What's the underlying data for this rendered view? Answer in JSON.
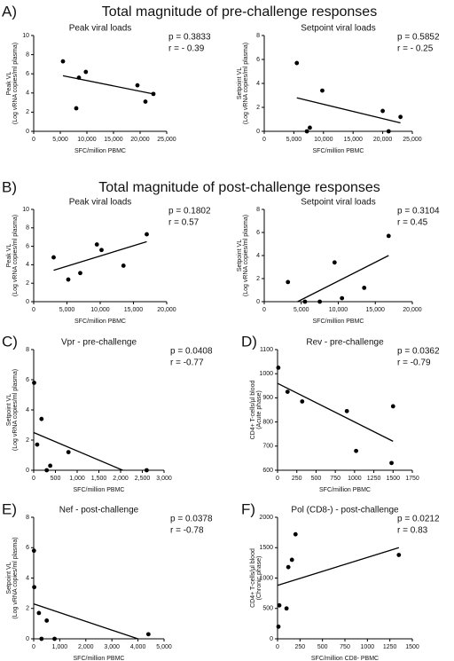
{
  "sections": [
    {
      "letter": "A)",
      "title": "Total magnitude of pre-challenge responses"
    },
    {
      "letter": "B)",
      "title": "Total magnitude of post-challenge responses"
    }
  ],
  "chart_data": [
    {
      "type": "scatter",
      "title": "Peak viral loads",
      "xlabel": "SFC/million PBMC",
      "ylabel": [
        "Peak VL",
        "(Log vRNA copies/ml plasma)"
      ],
      "annotations": [
        "p = 0.3833",
        "r = - 0.39"
      ],
      "x": [
        5500,
        8000,
        8500,
        9800,
        19500,
        21000,
        22500
      ],
      "y": [
        7.3,
        2.4,
        5.6,
        6.2,
        4.8,
        3.1,
        3.9
      ],
      "fit": {
        "x": [
          5500,
          22500
        ],
        "y": [
          5.8,
          3.9
        ]
      },
      "xlim": [
        0,
        25000
      ],
      "xticks": [
        0,
        {
          "value": 5000,
          "label": "5,000"
        },
        {
          "value": 10000,
          "label": "10,000"
        },
        {
          "value": 15000,
          "label": "15,000"
        },
        {
          "value": 20000,
          "label": "20,000"
        },
        {
          "value": 25000,
          "label": "25,000"
        }
      ],
      "ylim": [
        0,
        10
      ],
      "yticks": [
        0,
        2,
        4,
        6,
        8,
        10
      ],
      "color": "#000000"
    },
    {
      "type": "scatter",
      "title": "Setpoint viral loads",
      "xlabel": "SFC/million PBMC",
      "ylabel": [
        "Setpoint VL",
        "(Log vRNA copies/ml plasma)"
      ],
      "annotations": [
        "p = 0.5852",
        "r = - 0.25"
      ],
      "x": [
        5500,
        7200,
        7700,
        9800,
        20000,
        21000,
        23000
      ],
      "y": [
        5.7,
        0,
        0.3,
        3.4,
        1.7,
        0,
        1.2
      ],
      "fit": {
        "x": [
          5500,
          23000
        ],
        "y": [
          2.8,
          0.7
        ]
      },
      "xlim": [
        0,
        25000
      ],
      "xticks": [
        0,
        {
          "value": 5000,
          "label": "5,000"
        },
        {
          "value": 10000,
          "label": "10,000"
        },
        {
          "value": 15000,
          "label": "15,000"
        },
        {
          "value": 20000,
          "label": "20,000"
        },
        {
          "value": 25000,
          "label": "25,000"
        }
      ],
      "ylim": [
        0,
        8
      ],
      "yticks": [
        0,
        2,
        4,
        6,
        8
      ],
      "color": "#000000"
    },
    {
      "type": "scatter",
      "title": "Peak viral loads",
      "xlabel": "SFC/million PBMC",
      "ylabel": [
        "Peak VL",
        "(Log vRNA copies/ml plasma)"
      ],
      "annotations": [
        "p = 0.1802",
        "r = 0.57"
      ],
      "x": [
        3000,
        5200,
        7000,
        9500,
        10200,
        13500,
        17000
      ],
      "y": [
        4.8,
        2.4,
        3.1,
        6.2,
        5.6,
        3.9,
        7.3
      ],
      "fit": {
        "x": [
          3000,
          17000
        ],
        "y": [
          3.4,
          6.5
        ]
      },
      "xlim": [
        0,
        20000
      ],
      "xticks": [
        0,
        {
          "value": 5000,
          "label": "5,000"
        },
        {
          "value": 10000,
          "label": "10,000"
        },
        {
          "value": 15000,
          "label": "15,000"
        },
        {
          "value": 20000,
          "label": "20,000"
        }
      ],
      "ylim": [
        0,
        10
      ],
      "yticks": [
        0,
        2,
        4,
        6,
        8,
        10
      ],
      "color": "#000000"
    },
    {
      "type": "scatter",
      "title": "Setpoint viral loads",
      "xlabel": "SFC/million PBMC",
      "ylabel": [
        "Setpoint VL",
        "(Log vRNA copies/ml plasma)"
      ],
      "annotations": [
        "p = 0.3104",
        "r = 0.45"
      ],
      "x": [
        3200,
        5500,
        7500,
        9500,
        10500,
        13500,
        16800
      ],
      "y": [
        1.7,
        0,
        0,
        3.4,
        0.3,
        1.2,
        5.7
      ],
      "fit": {
        "x": [
          4500,
          16800
        ],
        "y": [
          0,
          4
        ]
      },
      "xlim": [
        0,
        20000
      ],
      "xticks": [
        0,
        {
          "value": 5000,
          "label": "5,000"
        },
        {
          "value": 10000,
          "label": "10,000"
        },
        {
          "value": 15000,
          "label": "15,000"
        },
        {
          "value": 20000,
          "label": "20,000"
        }
      ],
      "ylim": [
        0,
        8
      ],
      "yticks": [
        0,
        2,
        4,
        6,
        8
      ],
      "color": "#000000"
    },
    {
      "type": "scatter",
      "panel": "C)",
      "title": "Vpr - pre-challenge",
      "xlabel": "SFC/million PBMC",
      "ylabel": [
        "Setpoint VL",
        "(Log vRNA copies/ml plasma)"
      ],
      "annotations": [
        "p = 0.0408",
        "r = -0.77"
      ],
      "x": [
        10,
        80,
        180,
        300,
        380,
        800,
        2600
      ],
      "y": [
        5.8,
        1.7,
        3.4,
        0,
        0.3,
        1.2,
        0
      ],
      "fit": {
        "x": [
          0,
          2050
        ],
        "y": [
          2.5,
          0
        ]
      },
      "xlim": [
        0,
        3000
      ],
      "xticks": [
        0,
        500,
        {
          "value": 1000,
          "label": "1,000"
        },
        {
          "value": 1500,
          "label": "1,500"
        },
        {
          "value": 2000,
          "label": "2,000"
        },
        {
          "value": 2500,
          "label": "2,500"
        },
        {
          "value": 3000,
          "label": "3,000"
        }
      ],
      "ylim": [
        0,
        8
      ],
      "yticks": [
        0,
        2,
        4,
        6,
        8
      ],
      "color": "#000000"
    },
    {
      "type": "scatter",
      "panel": "D)",
      "title": "Rev - pre-challenge",
      "xlabel": "SFC/million PBMC",
      "ylabel": [
        "CD4+ T-cells/µl blood",
        "(Acute phase)"
      ],
      "annotations": [
        "p = 0.0362",
        "r = -0.79"
      ],
      "x": [
        10,
        130,
        320,
        900,
        1020,
        1480,
        1500
      ],
      "y": [
        1025,
        925,
        885,
        845,
        680,
        630,
        865
      ],
      "fit": {
        "x": [
          0,
          1500
        ],
        "y": [
          960,
          720
        ]
      },
      "xlim": [
        0,
        1750
      ],
      "xticks": [
        0,
        250,
        500,
        750,
        1000,
        1250,
        1500,
        1750
      ],
      "ylim": [
        600,
        1100
      ],
      "yticks": [
        600,
        700,
        800,
        900,
        1000,
        1100
      ],
      "color": "#000000"
    },
    {
      "type": "scatter",
      "panel": "E)",
      "title": "Nef - post-challenge",
      "xlabel": "SFC/million PBMC",
      "ylabel": [
        "Setpoint VL",
        "(Log vRNA copies/ml plasma)"
      ],
      "annotations": [
        "p = 0.0378",
        "r = -0.78"
      ],
      "x": [
        10,
        20,
        200,
        300,
        500,
        800,
        4400
      ],
      "y": [
        5.8,
        3.4,
        1.7,
        0,
        1.2,
        0,
        0.3
      ],
      "fit": {
        "x": [
          0,
          4000
        ],
        "y": [
          2.3,
          0
        ]
      },
      "xlim": [
        0,
        5000
      ],
      "xticks": [
        0,
        {
          "value": 1000,
          "label": "1,000"
        },
        {
          "value": 2000,
          "label": "2,000"
        },
        {
          "value": 3000,
          "label": "3,000"
        },
        {
          "value": 4000,
          "label": "4,000"
        },
        {
          "value": 5000,
          "label": "5,000"
        }
      ],
      "ylim": [
        0,
        8
      ],
      "yticks": [
        0,
        2,
        4,
        6,
        8
      ],
      "color": "#000000"
    },
    {
      "type": "scatter",
      "panel": "F)",
      "title": "Pol (CD8-) - post-challenge",
      "xlabel": "SFC/million CD8- PBMC",
      "ylabel": [
        "CD4+ T-cells/µl blood",
        "(Chronic phase)"
      ],
      "annotations": [
        "p = 0.0212",
        "r = 0.83"
      ],
      "x": [
        10,
        20,
        100,
        120,
        160,
        200,
        1350
      ],
      "y": [
        200,
        550,
        500,
        1180,
        1300,
        1720,
        1380
      ],
      "fit": {
        "x": [
          0,
          1350
        ],
        "y": [
          880,
          1500
        ]
      },
      "xlim": [
        0,
        1500
      ],
      "xticks": [
        0,
        250,
        500,
        750,
        1000,
        1250,
        1500
      ],
      "ylim": [
        0,
        2000
      ],
      "yticks": [
        0,
        500,
        1000,
        1500,
        2000
      ],
      "color": "#000000"
    }
  ]
}
